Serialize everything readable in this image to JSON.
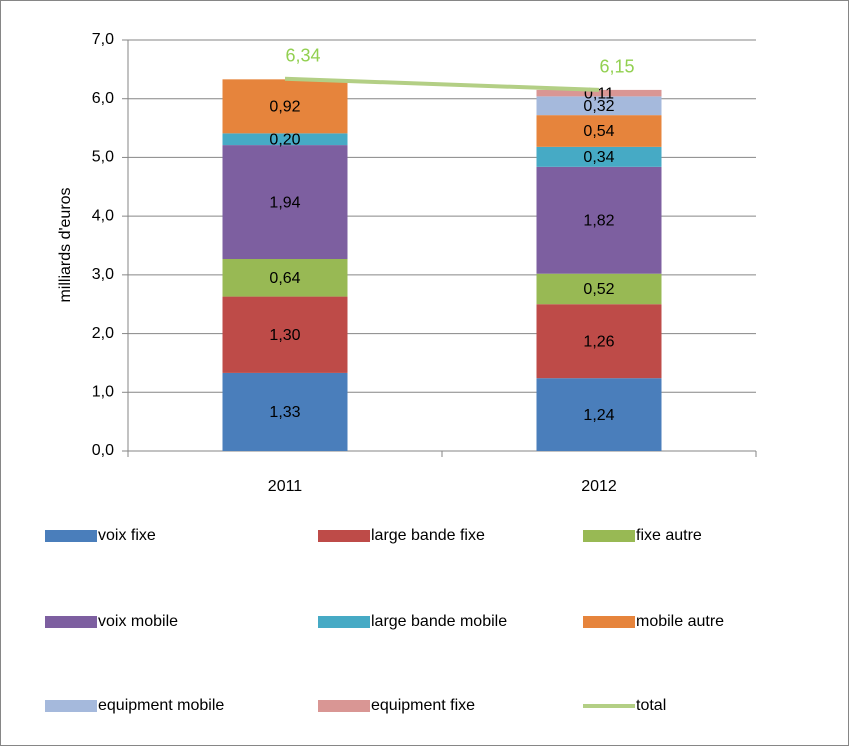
{
  "chart_data": {
    "type": "bar",
    "stacked": true,
    "ylabel": "milliards d'euros",
    "categories": [
      "2011",
      "2012"
    ],
    "series": [
      {
        "name": "voix fixe",
        "color": "#4a7ebb",
        "values": [
          1.33,
          1.24
        ],
        "value_labels": [
          "1,33",
          "1,24"
        ]
      },
      {
        "name": "large bande fixe",
        "color": "#be4b48",
        "values": [
          1.3,
          1.26
        ],
        "value_labels": [
          "1,30",
          "1,26"
        ]
      },
      {
        "name": "fixe autre",
        "color": "#98b954",
        "values": [
          0.64,
          0.52
        ],
        "value_labels": [
          "0,64",
          "0,52"
        ]
      },
      {
        "name": "voix mobile",
        "color": "#7d5fa0",
        "values": [
          1.94,
          1.82
        ],
        "value_labels": [
          "1,94",
          "1,82"
        ]
      },
      {
        "name": "large bande mobile",
        "color": "#46aac5",
        "values": [
          0.2,
          0.34
        ],
        "value_labels": [
          "0,20",
          "0,34"
        ]
      },
      {
        "name": "mobile autre",
        "color": "#e6843c",
        "values": [
          0.92,
          0.54
        ],
        "value_labels": [
          "0,92",
          "0,54"
        ]
      },
      {
        "name": "equipment mobile",
        "color": "#a5b9dc",
        "values": [
          null,
          0.32
        ],
        "value_labels": [
          null,
          "0,32"
        ]
      },
      {
        "name": "equipment fixe",
        "color": "#d99694",
        "values": [
          null,
          0.11
        ],
        "value_labels": [
          null,
          "0,11"
        ]
      },
      {
        "name": "total",
        "type": "line",
        "color": "#b3cf85",
        "label_color": "#92d050",
        "values": [
          6.34,
          6.15
        ],
        "value_labels": [
          "6,34",
          "6,15"
        ]
      }
    ],
    "ylim": [
      0,
      7
    ],
    "yticks": [
      {
        "value": 0,
        "label": "0,0"
      },
      {
        "value": 1,
        "label": "1,0"
      },
      {
        "value": 2,
        "label": "2,0"
      },
      {
        "value": 3,
        "label": "3,0"
      },
      {
        "value": 4,
        "label": "4,0"
      },
      {
        "value": 5,
        "label": "5,0"
      },
      {
        "value": 6,
        "label": "6,0"
      },
      {
        "value": 7,
        "label": "7,0"
      }
    ],
    "grid": true,
    "legend": "bottom"
  }
}
